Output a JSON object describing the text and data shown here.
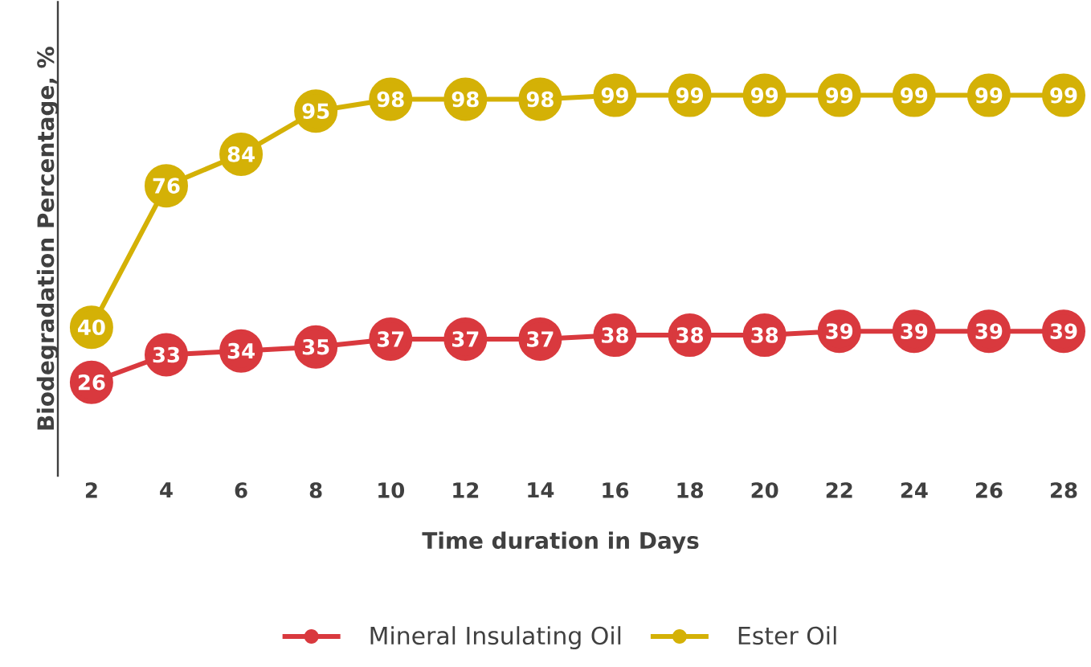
{
  "chart_data": {
    "type": "line",
    "xlabel": "Time duration in Days",
    "ylabel": "Biodegradation Percentage, %",
    "x": [
      2,
      4,
      6,
      8,
      10,
      12,
      14,
      16,
      18,
      20,
      22,
      24,
      26,
      28
    ],
    "xlim": [
      1.1,
      28
    ],
    "xticks": [
      2,
      4,
      6,
      8,
      10,
      12,
      14,
      16,
      18,
      20,
      22,
      24,
      26,
      28
    ],
    "tick_labels": "x",
    "series": [
      {
        "name": "Mineral Insulating Oil",
        "color": "#d9393e",
        "values": [
          26,
          33,
          34,
          35,
          37,
          37,
          37,
          38,
          38,
          38,
          39,
          39,
          39,
          39
        ]
      },
      {
        "name": "Ester Oil",
        "color": "#d4b106",
        "values": [
          40,
          76,
          84,
          95,
          98,
          98,
          98,
          99,
          99,
          99,
          99,
          99,
          99,
          99
        ]
      }
    ],
    "marker": "circle",
    "line_style": "solid",
    "data_labels": true,
    "legend": "bottom"
  }
}
